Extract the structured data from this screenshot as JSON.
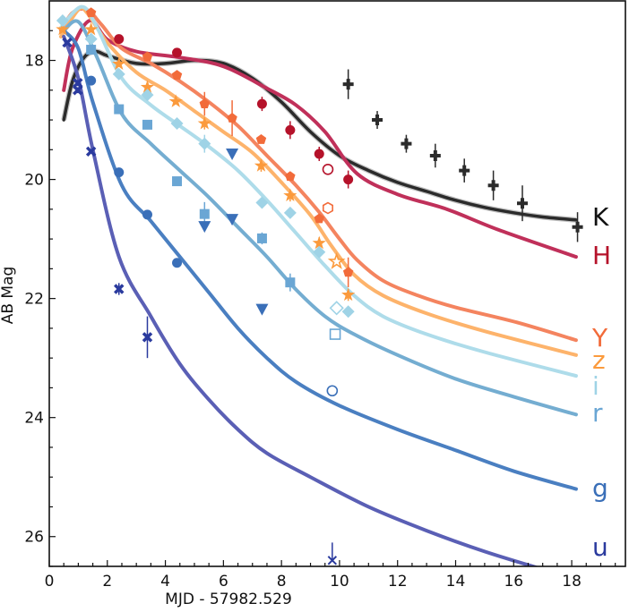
{
  "chart_data": {
    "type": "scatter",
    "title": "",
    "xlabel": "MJD - 57982.529",
    "ylabel": "AB Mag",
    "xlim": [
      0,
      19.85
    ],
    "ylim": [
      26.5,
      17.0
    ],
    "y_inverted": true,
    "grid": false,
    "xticks": [
      0,
      2,
      4,
      6,
      8,
      10,
      12,
      14,
      16,
      18
    ],
    "yticks": [
      18,
      20,
      22,
      24,
      26
    ],
    "series": [
      {
        "name": "K",
        "color": "#2b2b2b",
        "marker": "plus",
        "model": [
          [
            0.5,
            19.0
          ],
          [
            0.8,
            18.35
          ],
          [
            1.2,
            17.95
          ],
          [
            1.6,
            17.85
          ],
          [
            2,
            17.92
          ],
          [
            3,
            18.05
          ],
          [
            4,
            18.05
          ],
          [
            5,
            18.0
          ],
          [
            6,
            18.05
          ],
          [
            7,
            18.3
          ],
          [
            8,
            18.7
          ],
          [
            9,
            19.2
          ],
          [
            10,
            19.6
          ],
          [
            11,
            19.85
          ],
          [
            12,
            20.05
          ],
          [
            13,
            20.2
          ],
          [
            14,
            20.35
          ],
          [
            15,
            20.47
          ],
          [
            16,
            20.56
          ],
          [
            17,
            20.63
          ],
          [
            18.15,
            20.68
          ]
        ],
        "points": [
          {
            "t": 10.3,
            "m": 18.4,
            "err": 0.25
          },
          {
            "t": 11.3,
            "m": 19.0,
            "err": 0.15
          },
          {
            "t": 12.3,
            "m": 19.4,
            "err": 0.15
          },
          {
            "t": 13.3,
            "m": 19.6,
            "err": 0.2
          },
          {
            "t": 14.3,
            "m": 19.85,
            "err": 0.2
          },
          {
            "t": 15.3,
            "m": 20.1,
            "err": 0.25
          },
          {
            "t": 16.3,
            "m": 20.4,
            "err": 0.3
          },
          {
            "t": 18.2,
            "m": 20.8,
            "err": 0.25
          }
        ],
        "open_points": []
      },
      {
        "name": "H",
        "color": "#c0305a",
        "point_color": "#b5122a",
        "marker": "circle",
        "model": [
          [
            0.5,
            18.5
          ],
          [
            0.8,
            17.8
          ],
          [
            1.4,
            17.33
          ],
          [
            2,
            17.65
          ],
          [
            3,
            17.85
          ],
          [
            4.5,
            17.95
          ],
          [
            6,
            18.1
          ],
          [
            7.5,
            18.47
          ],
          [
            8.5,
            18.75
          ],
          [
            9.5,
            19.2
          ],
          [
            10.6,
            19.9
          ],
          [
            12,
            20.25
          ],
          [
            13.7,
            20.5
          ],
          [
            15.5,
            20.85
          ],
          [
            18.15,
            21.3
          ]
        ],
        "points": [
          {
            "t": 2.4,
            "m": 17.64,
            "err": 0.05
          },
          {
            "t": 4.4,
            "m": 17.87,
            "err": 0.08
          },
          {
            "t": 7.33,
            "m": 18.73,
            "err": 0.12
          },
          {
            "t": 8.3,
            "m": 19.17,
            "err": 0.15
          },
          {
            "t": 9.3,
            "m": 19.57,
            "err": 0.12
          },
          {
            "t": 10.3,
            "m": 20.0,
            "err": 0.15
          }
        ],
        "open_points": [
          {
            "t": 9.6,
            "m": 19.83
          }
        ]
      },
      {
        "name": "Y",
        "color": "#f4845f",
        "point_color": "#f26b3a",
        "marker": "pentagon",
        "model": [
          [
            0.4,
            17.5
          ],
          [
            0.8,
            17.2
          ],
          [
            1.3,
            17.15
          ],
          [
            1.8,
            17.4
          ],
          [
            2.5,
            17.8
          ],
          [
            3.5,
            18.05
          ],
          [
            4.5,
            18.35
          ],
          [
            5.5,
            18.7
          ],
          [
            6.5,
            19.1
          ],
          [
            7.5,
            19.6
          ],
          [
            8.5,
            20.1
          ],
          [
            9.3,
            20.55
          ],
          [
            10,
            21.0
          ],
          [
            10.6,
            21.35
          ],
          [
            11.5,
            21.7
          ],
          [
            12.7,
            21.95
          ],
          [
            14,
            22.15
          ],
          [
            16.1,
            22.4
          ],
          [
            18.15,
            22.7
          ]
        ],
        "points": [
          {
            "t": 1.44,
            "m": 17.2,
            "err": 0
          },
          {
            "t": 3.38,
            "m": 17.94,
            "err": 0
          },
          {
            "t": 4.4,
            "m": 18.25,
            "err": 0
          },
          {
            "t": 5.35,
            "m": 18.73,
            "err": 0.2
          },
          {
            "t": 6.3,
            "m": 18.97,
            "err": 0.3
          },
          {
            "t": 7.3,
            "m": 19.33,
            "err": 0
          },
          {
            "t": 8.3,
            "m": 19.95,
            "err": 0
          },
          {
            "t": 9.3,
            "m": 20.66,
            "err": 0
          },
          {
            "t": 10.3,
            "m": 21.56,
            "err": 0.25
          }
        ],
        "open_points": [
          {
            "t": 9.6,
            "m": 20.48
          }
        ]
      },
      {
        "name": "z",
        "color": "#fdb36b",
        "point_color": "#fb9a3c",
        "marker": "star",
        "model": [
          [
            0.4,
            17.6
          ],
          [
            1.0,
            17.15
          ],
          [
            1.3,
            17.2
          ],
          [
            2,
            17.7
          ],
          [
            3,
            18.2
          ],
          [
            4,
            18.5
          ],
          [
            5,
            18.85
          ],
          [
            6,
            19.2
          ],
          [
            7,
            19.55
          ],
          [
            8,
            20.05
          ],
          [
            9,
            20.6
          ],
          [
            9.7,
            21.1
          ],
          [
            10.5,
            21.6
          ],
          [
            11.5,
            21.95
          ],
          [
            13,
            22.25
          ],
          [
            15,
            22.55
          ],
          [
            18.15,
            22.95
          ]
        ],
        "points": [
          {
            "t": 0.46,
            "m": 17.48,
            "err": 0
          },
          {
            "t": 1.44,
            "m": 17.48,
            "err": 0
          },
          {
            "t": 2.4,
            "m": 18.06,
            "err": 0
          },
          {
            "t": 3.38,
            "m": 18.45,
            "err": 0
          },
          {
            "t": 4.36,
            "m": 18.69,
            "err": 0
          },
          {
            "t": 5.35,
            "m": 19.06,
            "err": 0.1
          },
          {
            "t": 7.3,
            "m": 19.77,
            "err": 0.1
          },
          {
            "t": 8.3,
            "m": 20.27,
            "err": 0.1
          },
          {
            "t": 9.3,
            "m": 21.07,
            "err": 0.1
          },
          {
            "t": 10.3,
            "m": 21.94,
            "err": 0.1
          }
        ],
        "open_points": [
          {
            "t": 9.9,
            "m": 21.38
          }
        ]
      },
      {
        "name": "i",
        "color": "#aedcea",
        "point_color": "#9fd3e6",
        "marker": "diamond",
        "model": [
          [
            0.4,
            17.45
          ],
          [
            1.1,
            17.1
          ],
          [
            1.6,
            17.4
          ],
          [
            2.5,
            18.3
          ],
          [
            3.5,
            18.75
          ],
          [
            4.5,
            19.1
          ],
          [
            5.5,
            19.45
          ],
          [
            6.5,
            19.85
          ],
          [
            7.5,
            20.35
          ],
          [
            8.5,
            20.9
          ],
          [
            9.5,
            21.45
          ],
          [
            10.5,
            21.95
          ],
          [
            11.5,
            22.3
          ],
          [
            13,
            22.6
          ],
          [
            15,
            22.9
          ],
          [
            18.15,
            23.3
          ]
        ],
        "points": [
          {
            "t": 0.46,
            "m": 17.33,
            "err": 0
          },
          {
            "t": 1.44,
            "m": 17.64,
            "err": 0
          },
          {
            "t": 2.4,
            "m": 18.23,
            "err": 0
          },
          {
            "t": 3.38,
            "m": 18.58,
            "err": 0
          },
          {
            "t": 4.4,
            "m": 19.06,
            "err": 0
          },
          {
            "t": 5.35,
            "m": 19.4,
            "err": 0.15
          },
          {
            "t": 7.33,
            "m": 20.39,
            "err": 0
          },
          {
            "t": 8.3,
            "m": 20.56,
            "err": 0
          },
          {
            "t": 9.3,
            "m": 21.22,
            "err": 0
          },
          {
            "t": 10.3,
            "m": 22.22,
            "err": 0
          }
        ],
        "open_points": [
          {
            "t": 9.9,
            "m": 22.16
          }
        ]
      },
      {
        "name": "r",
        "color": "#74add1",
        "point_color": "#6aa6d4",
        "marker": "square",
        "model": [
          [
            0.5,
            17.5
          ],
          [
            1.0,
            17.35
          ],
          [
            1.6,
            17.9
          ],
          [
            2.5,
            18.9
          ],
          [
            3.5,
            19.4
          ],
          [
            4.5,
            19.85
          ],
          [
            5.5,
            20.3
          ],
          [
            6.5,
            20.8
          ],
          [
            7.5,
            21.3
          ],
          [
            8.5,
            21.85
          ],
          [
            9.5,
            22.3
          ],
          [
            10.5,
            22.6
          ],
          [
            12,
            22.95
          ],
          [
            14,
            23.35
          ],
          [
            16,
            23.65
          ],
          [
            18.15,
            23.95
          ]
        ],
        "points": [
          {
            "t": 1.44,
            "m": 17.82,
            "err": 0
          },
          {
            "t": 2.4,
            "m": 18.82,
            "err": 0
          },
          {
            "t": 3.38,
            "m": 19.08,
            "err": 0
          },
          {
            "t": 4.4,
            "m": 20.03,
            "err": 0
          },
          {
            "t": 5.35,
            "m": 20.58,
            "err": 0.2
          },
          {
            "t": 7.33,
            "m": 20.99,
            "err": 0.1
          },
          {
            "t": 8.3,
            "m": 21.73,
            "err": 0.15
          }
        ],
        "open_points": [
          {
            "t": 9.85,
            "m": 22.6
          }
        ]
      },
      {
        "name": "g",
        "color": "#4a7fc1",
        "point_color": "#3a6fb8",
        "marker": "circle",
        "model": [
          [
            0.5,
            17.5
          ],
          [
            1.0,
            17.8
          ],
          [
            1.5,
            18.7
          ],
          [
            2.5,
            20.1
          ],
          [
            3.5,
            20.7
          ],
          [
            4.5,
            21.3
          ],
          [
            5.5,
            21.9
          ],
          [
            6.5,
            22.5
          ],
          [
            7.5,
            23.0
          ],
          [
            8.5,
            23.4
          ],
          [
            10,
            23.8
          ],
          [
            12,
            24.2
          ],
          [
            14,
            24.55
          ],
          [
            16,
            24.9
          ],
          [
            18.15,
            25.2
          ]
        ],
        "points": [
          {
            "t": 1.44,
            "m": 18.34,
            "err": 0
          },
          {
            "t": 2.4,
            "m": 19.88,
            "err": 0
          },
          {
            "t": 3.38,
            "m": 20.59,
            "err": 0
          },
          {
            "t": 4.4,
            "m": 21.4,
            "err": 0.05
          }
        ],
        "upper_limits": [
          {
            "t": 5.35,
            "m": 20.79
          },
          {
            "t": 6.3,
            "m": 19.57
          },
          {
            "t": 6.3,
            "m": 20.67
          },
          {
            "t": 7.33,
            "m": 22.18
          }
        ],
        "open_points": [
          {
            "t": 9.75,
            "m": 23.55
          }
        ]
      },
      {
        "name": "u",
        "color": "#5a5fb5",
        "point_color": "#2a3a9e",
        "marker": "x",
        "model": [
          [
            0.5,
            17.6
          ],
          [
            1.0,
            18.3
          ],
          [
            1.5,
            19.5
          ],
          [
            2.4,
            21.3
          ],
          [
            3.5,
            22.3
          ],
          [
            4.5,
            23.1
          ],
          [
            5.5,
            23.7
          ],
          [
            6.5,
            24.2
          ],
          [
            7.5,
            24.6
          ],
          [
            9,
            25.0
          ],
          [
            11,
            25.5
          ],
          [
            13,
            25.9
          ],
          [
            15,
            26.25
          ],
          [
            17,
            26.55
          ]
        ],
        "points": [
          {
            "t": 0.62,
            "m": 17.7,
            "err": 0
          },
          {
            "t": 0.98,
            "m": 18.38,
            "err": 0.05
          },
          {
            "t": 0.98,
            "m": 18.5,
            "err": 0.05
          },
          {
            "t": 1.44,
            "m": 19.53,
            "err": 0
          },
          {
            "t": 2.4,
            "m": 21.84,
            "err": 0.1
          },
          {
            "t": 3.38,
            "m": 22.65,
            "err": 0.35
          }
        ],
        "open_points": [
          {
            "t": 9.75,
            "m": 26.4,
            "err_up": 0.3
          }
        ]
      }
    ]
  }
}
